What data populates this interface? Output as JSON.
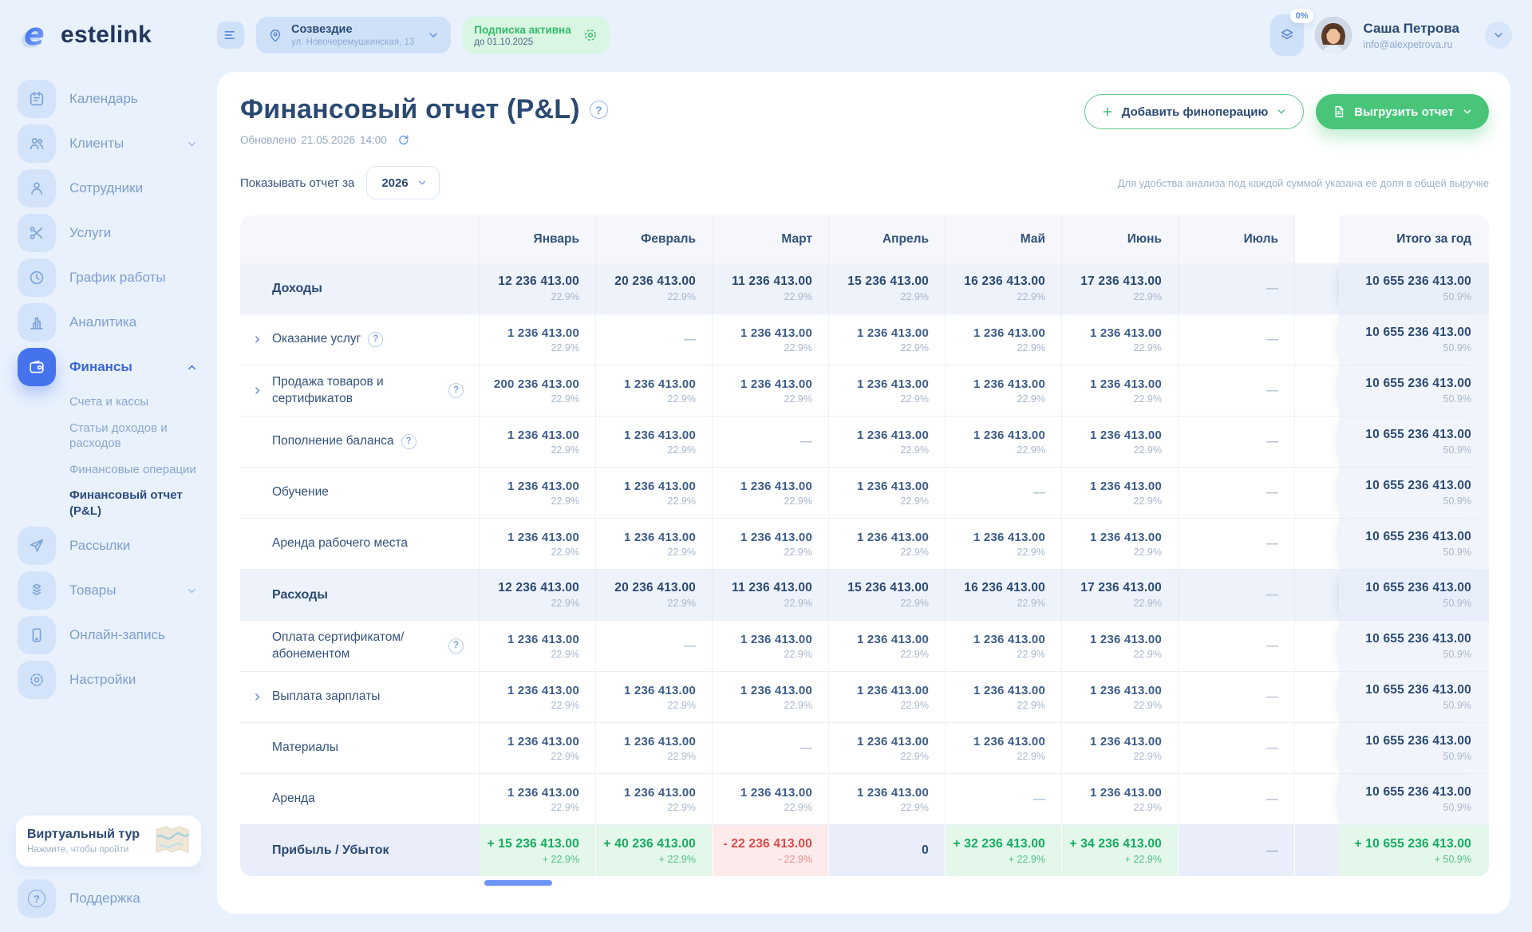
{
  "colors": {
    "accent": "#4573ee",
    "green": "#49c579",
    "red": "#e04848",
    "page_bg": "#e8f1fc"
  },
  "brand": {
    "name": "estelink"
  },
  "topbar": {
    "location": {
      "name": "Созвездие",
      "address": "ул. Новочеремушкинская, 13"
    },
    "subscription": {
      "status": "Подписка активна",
      "until": "до 01.10.2025"
    },
    "progress_badge": "0%",
    "user": {
      "name": "Саша Петрова",
      "email": "info@alexpetrova.ru"
    }
  },
  "sidebar": {
    "items": [
      {
        "id": "calendar",
        "icon": "calendar-icon",
        "label": "Календарь"
      },
      {
        "id": "clients",
        "icon": "clients-icon",
        "label": "Клиенты",
        "chevron": "down"
      },
      {
        "id": "employees",
        "icon": "employee-icon",
        "label": "Сотрудники"
      },
      {
        "id": "services",
        "icon": "scissors-icon",
        "label": "Услуги"
      },
      {
        "id": "schedule",
        "icon": "clock-icon",
        "label": "График работы"
      },
      {
        "id": "analytics",
        "icon": "analytics-icon",
        "label": "Аналитика"
      },
      {
        "id": "finance",
        "icon": "wallet-icon",
        "label": "Финансы",
        "chevron": "up",
        "active": true,
        "submenu": [
          {
            "id": "accounts",
            "label": "Счета и кассы"
          },
          {
            "id": "articles",
            "label": "Статьи доходов и расходов"
          },
          {
            "id": "operations",
            "label": "Финансовые операции"
          },
          {
            "id": "pl-report",
            "label": "Финансовый отчет (P&L)",
            "active": true
          }
        ]
      },
      {
        "id": "mailings",
        "icon": "send-icon",
        "label": "Рассылки"
      },
      {
        "id": "products",
        "icon": "products-icon",
        "label": "Товары",
        "chevron": "down"
      },
      {
        "id": "online-booking",
        "icon": "online-icon",
        "label": "Онлайн-запись"
      },
      {
        "id": "settings",
        "icon": "settings-icon",
        "label": "Настройки"
      }
    ],
    "tour": {
      "title": "Виртуальный тур",
      "subtitle": "Нажмите, чтобы пройти"
    },
    "support": {
      "label": "Поддержка"
    }
  },
  "page": {
    "title": "Финансовый отчет (P&L)",
    "updated_label": "Обновлено",
    "updated_date": "21.05.2026",
    "updated_time": "14:00",
    "add_button": "Добавить финоперацию",
    "export_button": "Выгрузить отчет",
    "filter_label": "Показывать отчет за",
    "filter_value": "2026",
    "hint": "Для удобства анализа под каждой суммой указана её доля в общей выручке"
  },
  "table": {
    "months": [
      "Январь",
      "Февраль",
      "Март",
      "Апрель",
      "Май",
      "Июнь",
      "Июль"
    ],
    "total_label": "Итого за год",
    "rows": [
      {
        "id": "income",
        "label": "Доходы",
        "type": "section",
        "cells": [
          {
            "v": "12 236 413.00",
            "p": "22.9%"
          },
          {
            "v": "20 236 413.00",
            "p": "22.9%"
          },
          {
            "v": "11 236 413.00",
            "p": "22.9%"
          },
          {
            "v": "15 236 413.00",
            "p": "22.9%"
          },
          {
            "v": "16 236 413.00",
            "p": "22.9%"
          },
          {
            "v": "17 236 413.00",
            "p": "22.9%"
          },
          null
        ],
        "total": {
          "v": "10 655 236 413.00",
          "p": "50.9%"
        }
      },
      {
        "id": "services-income",
        "label": "Оказание услуг",
        "type": "row",
        "expandable": true,
        "help": true,
        "cells": [
          {
            "v": "1 236 413.00",
            "p": "22.9%"
          },
          null,
          {
            "v": "1 236 413.00",
            "p": "22.9%"
          },
          {
            "v": "1 236 413.00",
            "p": "22.9%"
          },
          {
            "v": "1 236 413.00",
            "p": "22.9%"
          },
          {
            "v": "1 236 413.00",
            "p": "22.9%"
          },
          null
        ],
        "total": {
          "v": "10 655 236 413.00",
          "p": "50.9%"
        }
      },
      {
        "id": "goods-certificates",
        "label": "Продажа товаров и сертификатов",
        "type": "row",
        "expandable": true,
        "help": true,
        "cells": [
          {
            "v": "200 236 413.00",
            "p": "22.9%"
          },
          {
            "v": "1 236 413.00",
            "p": "22.9%"
          },
          {
            "v": "1 236 413.00",
            "p": "22.9%"
          },
          {
            "v": "1 236 413.00",
            "p": "22.9%"
          },
          {
            "v": "1 236 413.00",
            "p": "22.9%"
          },
          {
            "v": "1 236 413.00",
            "p": "22.9%"
          },
          null
        ],
        "total": {
          "v": "10 655 236 413.00",
          "p": "50.9%"
        }
      },
      {
        "id": "balance-topup",
        "label": "Пополнение баланса",
        "type": "row",
        "help": true,
        "cells": [
          {
            "v": "1 236 413.00",
            "p": "22.9%"
          },
          {
            "v": "1 236 413.00",
            "p": "22.9%"
          },
          null,
          {
            "v": "1 236 413.00",
            "p": "22.9%"
          },
          {
            "v": "1 236 413.00",
            "p": "22.9%"
          },
          {
            "v": "1 236 413.00",
            "p": "22.9%"
          },
          null
        ],
        "total": {
          "v": "10 655 236 413.00",
          "p": "50.9%"
        }
      },
      {
        "id": "training",
        "label": "Обучение",
        "type": "row",
        "cells": [
          {
            "v": "1 236 413.00",
            "p": "22.9%"
          },
          {
            "v": "1 236 413.00",
            "p": "22.9%"
          },
          {
            "v": "1 236 413.00",
            "p": "22.9%"
          },
          {
            "v": "1 236 413.00",
            "p": "22.9%"
          },
          null,
          {
            "v": "1 236 413.00",
            "p": "22.9%"
          },
          null
        ],
        "total": {
          "v": "10 655 236 413.00",
          "p": "50.9%"
        }
      },
      {
        "id": "workplace-rent",
        "label": "Аренда рабочего места",
        "type": "row",
        "cells": [
          {
            "v": "1 236 413.00",
            "p": "22.9%"
          },
          {
            "v": "1 236 413.00",
            "p": "22.9%"
          },
          {
            "v": "1 236 413.00",
            "p": "22.9%"
          },
          {
            "v": "1 236 413.00",
            "p": "22.9%"
          },
          {
            "v": "1 236 413.00",
            "p": "22.9%"
          },
          {
            "v": "1 236 413.00",
            "p": "22.9%"
          },
          null
        ],
        "total": {
          "v": "10 655 236 413.00",
          "p": "50.9%"
        }
      },
      {
        "id": "expenses",
        "label": "Расходы",
        "type": "section",
        "cells": [
          {
            "v": "12 236 413.00",
            "p": "22.9%"
          },
          {
            "v": "20 236 413.00",
            "p": "22.9%"
          },
          {
            "v": "11 236 413.00",
            "p": "22.9%"
          },
          {
            "v": "15 236 413.00",
            "p": "22.9%"
          },
          {
            "v": "16 236 413.00",
            "p": "22.9%"
          },
          {
            "v": "17 236 413.00",
            "p": "22.9%"
          },
          null
        ],
        "total": {
          "v": "10 655 236 413.00",
          "p": "50.9%"
        }
      },
      {
        "id": "certificate-payment",
        "label": "Оплата сертификатом/абонементом",
        "type": "row",
        "help": true,
        "cells": [
          {
            "v": "1 236 413.00",
            "p": "22.9%"
          },
          null,
          {
            "v": "1 236 413.00",
            "p": "22.9%"
          },
          {
            "v": "1 236 413.00",
            "p": "22.9%"
          },
          {
            "v": "1 236 413.00",
            "p": "22.9%"
          },
          {
            "v": "1 236 413.00",
            "p": "22.9%"
          },
          null
        ],
        "total": {
          "v": "10 655 236 413.00",
          "p": "50.9%"
        }
      },
      {
        "id": "salary",
        "label": "Выплата зарплаты",
        "type": "row",
        "expandable": true,
        "cells": [
          {
            "v": "1 236 413.00",
            "p": "22.9%"
          },
          {
            "v": "1 236 413.00",
            "p": "22.9%"
          },
          {
            "v": "1 236 413.00",
            "p": "22.9%"
          },
          {
            "v": "1 236 413.00",
            "p": "22.9%"
          },
          {
            "v": "1 236 413.00",
            "p": "22.9%"
          },
          {
            "v": "1 236 413.00",
            "p": "22.9%"
          },
          null
        ],
        "total": {
          "v": "10 655 236 413.00",
          "p": "50.9%"
        }
      },
      {
        "id": "materials",
        "label": "Материалы",
        "type": "row",
        "cells": [
          {
            "v": "1 236 413.00",
            "p": "22.9%"
          },
          {
            "v": "1 236 413.00",
            "p": "22.9%"
          },
          null,
          {
            "v": "1 236 413.00",
            "p": "22.9%"
          },
          {
            "v": "1 236 413.00",
            "p": "22.9%"
          },
          {
            "v": "1 236 413.00",
            "p": "22.9%"
          },
          null
        ],
        "total": {
          "v": "10 655 236 413.00",
          "p": "50.9%"
        }
      },
      {
        "id": "rent",
        "label": "Аренда",
        "type": "row",
        "cells": [
          {
            "v": "1 236 413.00",
            "p": "22.9%"
          },
          {
            "v": "1 236 413.00",
            "p": "22.9%"
          },
          {
            "v": "1 236 413.00",
            "p": "22.9%"
          },
          {
            "v": "1 236 413.00",
            "p": "22.9%"
          },
          null,
          {
            "v": "1 236 413.00",
            "p": "22.9%"
          },
          null
        ],
        "total": {
          "v": "10 655 236 413.00",
          "p": "50.9%"
        }
      },
      {
        "id": "profit-loss",
        "label": "Прибыль / Убыток",
        "type": "profit",
        "cells": [
          {
            "v": "+ 15 236 413.00",
            "p": "+ 22.9%",
            "s": "pos"
          },
          {
            "v": "+ 40 236 413.00",
            "p": "+ 22.9%",
            "s": "pos"
          },
          {
            "v": "- 22 236 413.00",
            "p": "- 22.9%",
            "s": "neg"
          },
          {
            "v": "0",
            "s": "zero"
          },
          {
            "v": "+ 32 236 413.00",
            "p": "+ 22.9%",
            "s": "pos"
          },
          {
            "v": "+ 34 236 413.00",
            "p": "+ 22.9%",
            "s": "pos"
          },
          null
        ],
        "total": {
          "v": "+ 10 655 236 413.00",
          "p": "+ 50.9%",
          "s": "pos"
        }
      }
    ]
  }
}
